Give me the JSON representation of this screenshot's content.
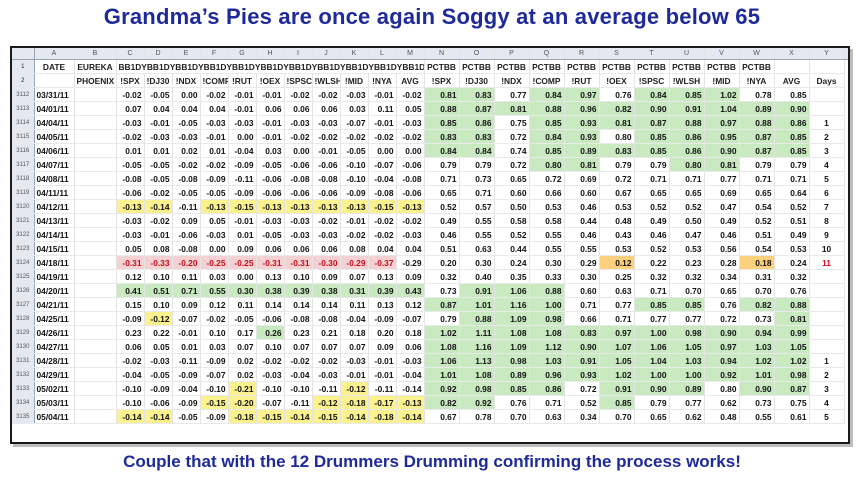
{
  "title": "Grandma’s Pies are once again Soggy at an average below 65",
  "footer": "Couple that with the 12 Drummers Drumming confirming the process works!",
  "column_letters": [
    "A",
    "B",
    "C",
    "D",
    "E",
    "F",
    "G",
    "H",
    "I",
    "J",
    "K",
    "L",
    "M",
    "N",
    "O",
    "P",
    "Q",
    "R",
    "S",
    "T",
    "U",
    "V",
    "W",
    "X",
    "Y",
    "Z"
  ],
  "header_row1": [
    "DATE",
    "EUREKA",
    "BB1DYBB1DYBB1DYBB1DYBB1DYBB1DYBB1DYBB1DYBB1DYBB1DYBB1DYCMPST",
    "",
    "",
    "",
    "",
    "",
    "",
    "",
    "",
    "",
    "",
    "",
    "PCTBB",
    "PCTBB",
    "PCTBB",
    "PCTBB",
    "PCTBB",
    "PCTBB",
    "PCTBB",
    "PCTBB",
    "PCTBB",
    "PCTBB",
    "",
    ""
  ],
  "header_row2": [
    "",
    "PHOENIX",
    "!SPX",
    "!DJ30",
    "!NDX",
    "!COMP",
    "!RUT",
    "!OEX",
    "!SPSC",
    "!WLSH",
    "!MID",
    "!NYA",
    "AVG",
    "!SPX",
    "!DJ30",
    "!NDX",
    "!COMP",
    "!RUT",
    "!OEX",
    "!SPSC",
    "!WLSH",
    "!MID",
    "!NYA",
    "AVG",
    "Days"
  ],
  "rows": [
    {
      "n": "3112",
      "d": "03/31/11",
      "v": [
        "-0.02",
        "-0.05",
        "0.00",
        "-0.02",
        "-0.01",
        "-0.01",
        "-0.02",
        "-0.02",
        "-0.03",
        "-0.01",
        "-0.02",
        "0.81",
        "0.83",
        "0.77",
        "0.84",
        "0.97",
        "0.76",
        "0.84",
        "0.85",
        "1.02",
        "0.78",
        "0.85"
      ],
      "days": "",
      "s": [
        "",
        "",
        "",
        "",
        "",
        "",
        "",
        "",
        "",
        "",
        "",
        "g",
        "g",
        "",
        "g",
        "g",
        "",
        "g",
        "g",
        "g",
        "",
        ""
      ]
    },
    {
      "n": "3113",
      "d": "04/01/11",
      "v": [
        "0.07",
        "0.04",
        "0.04",
        "0.04",
        "-0.01",
        "0.06",
        "0.06",
        "0.06",
        "0.03",
        "0.11",
        "0.05",
        "0.88",
        "0.87",
        "0.81",
        "0.88",
        "0.96",
        "0.82",
        "0.90",
        "0.91",
        "1.04",
        "0.89",
        "0.90"
      ],
      "days": "",
      "s": [
        "",
        "",
        "",
        "",
        "",
        "",
        "",
        "",
        "",
        "",
        "",
        "g",
        "g",
        "g",
        "g",
        "g",
        "g",
        "g",
        "g",
        "g",
        "g",
        "g"
      ]
    },
    {
      "n": "3114",
      "d": "04/04/11",
      "v": [
        "-0.03",
        "-0.01",
        "-0.05",
        "-0.03",
        "-0.03",
        "-0.01",
        "-0.03",
        "-0.03",
        "-0.07",
        "-0.01",
        "-0.03",
        "0.85",
        "0.86",
        "0.75",
        "0.85",
        "0.93",
        "0.81",
        "0.87",
        "0.88",
        "0.97",
        "0.88",
        "0.86"
      ],
      "days": "1",
      "s": [
        "",
        "",
        "",
        "",
        "",
        "",
        "",
        "",
        "",
        "",
        "",
        "g",
        "g",
        "",
        "g",
        "g",
        "g",
        "g",
        "g",
        "g",
        "g",
        "g"
      ]
    },
    {
      "n": "3115",
      "d": "04/05/11",
      "v": [
        "-0.02",
        "-0.03",
        "-0.03",
        "-0.01",
        "0.00",
        "-0.01",
        "-0.02",
        "-0.02",
        "-0.02",
        "-0.02",
        "-0.02",
        "0.83",
        "0.83",
        "0.72",
        "0.84",
        "0.93",
        "0.80",
        "0.85",
        "0.86",
        "0.95",
        "0.87",
        "0.85"
      ],
      "days": "2",
      "s": [
        "",
        "",
        "",
        "",
        "",
        "",
        "",
        "",
        "",
        "",
        "",
        "g",
        "g",
        "",
        "g",
        "g",
        "",
        "g",
        "g",
        "g",
        "g",
        "g"
      ]
    },
    {
      "n": "3116",
      "d": "04/06/11",
      "v": [
        "0.01",
        "0.01",
        "0.02",
        "0.01",
        "-0.04",
        "0.03",
        "0.00",
        "-0.01",
        "-0.05",
        "0.00",
        "0.00",
        "0.84",
        "0.84",
        "0.74",
        "0.85",
        "0.89",
        "0.83",
        "0.85",
        "0.86",
        "0.90",
        "0.87",
        "0.85"
      ],
      "days": "3",
      "s": [
        "",
        "",
        "",
        "",
        "",
        "",
        "",
        "",
        "",
        "",
        "",
        "g",
        "g",
        "",
        "g",
        "g",
        "g",
        "g",
        "g",
        "g",
        "g",
        "g"
      ]
    },
    {
      "n": "3117",
      "d": "04/07/11",
      "v": [
        "-0.05",
        "-0.05",
        "-0.02",
        "-0.02",
        "-0.09",
        "-0.05",
        "-0.06",
        "-0.06",
        "-0.10",
        "-0.07",
        "-0.06",
        "0.79",
        "0.79",
        "0.72",
        "0.80",
        "0.81",
        "0.79",
        "0.79",
        "0.80",
        "0.81",
        "0.79",
        "0.79"
      ],
      "days": "4",
      "s": [
        "",
        "",
        "",
        "",
        "",
        "",
        "",
        "",
        "",
        "",
        "",
        "",
        "",
        "",
        "g",
        "g",
        "",
        "",
        "g",
        "g",
        "",
        ""
      ]
    },
    {
      "n": "3118",
      "d": "04/08/11",
      "v": [
        "-0.08",
        "-0.05",
        "-0.08",
        "-0.09",
        "-0.11",
        "-0.06",
        "-0.08",
        "-0.08",
        "-0.10",
        "-0.04",
        "-0.08",
        "0.71",
        "0.73",
        "0.65",
        "0.72",
        "0.69",
        "0.72",
        "0.71",
        "0.71",
        "0.77",
        "0.71",
        "0.71"
      ],
      "days": "5",
      "s": [
        "",
        "",
        "",
        "",
        "",
        "",
        "",
        "",
        "",
        "",
        "",
        "",
        "",
        "",
        "",
        "",
        "",
        "",
        "",
        "",
        "",
        ""
      ]
    },
    {
      "n": "3119",
      "d": "04/11/11",
      "v": [
        "-0.06",
        "-0.02",
        "-0.05",
        "-0.05",
        "-0.09",
        "-0.06",
        "-0.06",
        "-0.06",
        "-0.09",
        "-0.08",
        "-0.06",
        "0.65",
        "0.71",
        "0.60",
        "0.66",
        "0.60",
        "0.67",
        "0.65",
        "0.65",
        "0.69",
        "0.65",
        "0.64"
      ],
      "days": "6",
      "s": [
        "",
        "",
        "",
        "",
        "",
        "",
        "",
        "",
        "",
        "",
        "",
        "",
        "",
        "",
        "",
        "",
        "",
        "",
        "",
        "",
        "",
        ""
      ]
    },
    {
      "n": "3120",
      "d": "04/12/11",
      "v": [
        "-0.13",
        "-0.14",
        "-0.11",
        "-0.13",
        "-0.15",
        "-0.13",
        "-0.13",
        "-0.13",
        "-0.13",
        "-0.15",
        "-0.13",
        "0.52",
        "0.57",
        "0.50",
        "0.53",
        "0.46",
        "0.53",
        "0.52",
        "0.52",
        "0.47",
        "0.54",
        "0.52"
      ],
      "days": "7",
      "s": [
        "y",
        "y",
        "",
        "y",
        "y",
        "y",
        "y",
        "y",
        "y",
        "y",
        "y",
        "",
        "",
        "",
        "",
        "",
        "",
        "",
        "",
        "",
        "",
        ""
      ]
    },
    {
      "n": "3121",
      "d": "04/13/11",
      "v": [
        "-0.03",
        "-0.02",
        "0.09",
        "0.05",
        "-0.01",
        "-0.03",
        "-0.03",
        "-0.02",
        "-0.01",
        "-0.02",
        "-0.02",
        "0.49",
        "0.55",
        "0.58",
        "0.58",
        "0.44",
        "0.48",
        "0.49",
        "0.50",
        "0.49",
        "0.52",
        "0.51"
      ],
      "days": "8",
      "s": [
        "",
        "",
        "",
        "",
        "",
        "",
        "",
        "",
        "",
        "",
        "",
        "",
        "",
        "",
        "",
        "",
        "",
        "",
        "",
        "",
        "",
        ""
      ]
    },
    {
      "n": "3122",
      "d": "04/14/11",
      "v": [
        "-0.03",
        "-0.01",
        "-0.06",
        "-0.03",
        "0.01",
        "-0.05",
        "-0.03",
        "-0.03",
        "-0.02",
        "-0.02",
        "-0.03",
        "0.46",
        "0.55",
        "0.52",
        "0.55",
        "0.46",
        "0.43",
        "0.46",
        "0.47",
        "0.46",
        "0.51",
        "0.49"
      ],
      "days": "9",
      "s": [
        "",
        "",
        "",
        "",
        "",
        "",
        "",
        "",
        "",
        "",
        "",
        "",
        "",
        "",
        "",
        "",
        "",
        "",
        "",
        "",
        "",
        ""
      ]
    },
    {
      "n": "3123",
      "d": "04/15/11",
      "v": [
        "0.05",
        "0.08",
        "-0.08",
        "0.00",
        "0.09",
        "0.06",
        "0.06",
        "0.06",
        "0.08",
        "0.04",
        "0.04",
        "0.51",
        "0.63",
        "0.44",
        "0.55",
        "0.55",
        "0.53",
        "0.52",
        "0.53",
        "0.56",
        "0.54",
        "0.53"
      ],
      "days": "10",
      "s": [
        "",
        "",
        "",
        "",
        "",
        "",
        "",
        "",
        "",
        "",
        "",
        "",
        "",
        "",
        "",
        "",
        "",
        "",
        "",
        "",
        "",
        ""
      ]
    },
    {
      "n": "3124",
      "d": "04/18/11",
      "v": [
        "-0.31",
        "-0.33",
        "-0.20",
        "-0.25",
        "-0.25",
        "-0.31",
        "-0.31",
        "-0.30",
        "-0.29",
        "-0.37",
        "-0.29",
        "0.20",
        "0.30",
        "0.24",
        "0.30",
        "0.29",
        "0.12",
        "0.22",
        "0.23",
        "0.28",
        "0.18",
        "0.24"
      ],
      "days": "11",
      "s": [
        "p",
        "p",
        "p",
        "p",
        "p",
        "p",
        "p",
        "p",
        "p",
        "p",
        "",
        "",
        "",
        "",
        "",
        "",
        "o",
        "",
        "",
        "",
        "o",
        ""
      ],
      "red": true
    },
    {
      "n": "3125",
      "d": "04/19/11",
      "v": [
        "0.12",
        "0.10",
        "0.11",
        "0.03",
        "0.00",
        "0.13",
        "0.10",
        "0.09",
        "0.07",
        "0.13",
        "0.09",
        "0.32",
        "0.40",
        "0.35",
        "0.33",
        "0.30",
        "0.25",
        "0.32",
        "0.32",
        "0.34",
        "0.31",
        "0.32"
      ],
      "days": "",
      "s": [
        "",
        "",
        "",
        "",
        "",
        "",
        "",
        "",
        "",
        "",
        "",
        "",
        "",
        "",
        "",
        "",
        "",
        "",
        "",
        "",
        "",
        ""
      ]
    },
    {
      "n": "3126",
      "d": "04/20/11",
      "v": [
        "0.41",
        "0.51",
        "0.71",
        "0.55",
        "0.30",
        "0.38",
        "0.39",
        "0.38",
        "0.31",
        "0.39",
        "0.43",
        "0.73",
        "0.91",
        "1.06",
        "0.88",
        "0.60",
        "0.63",
        "0.71",
        "0.70",
        "0.65",
        "0.70",
        "0.76"
      ],
      "days": "",
      "s": [
        "g",
        "g",
        "g",
        "g",
        "g",
        "g",
        "g",
        "g",
        "g",
        "g",
        "g",
        "",
        "g",
        "g",
        "g",
        "",
        "",
        "",
        "",
        "",
        "",
        ""
      ]
    },
    {
      "n": "3127",
      "d": "04/21/11",
      "v": [
        "0.15",
        "0.10",
        "0.09",
        "0.12",
        "0.11",
        "0.14",
        "0.14",
        "0.14",
        "0.11",
        "0.13",
        "0.12",
        "0.87",
        "1.01",
        "1.16",
        "1.00",
        "0.71",
        "0.77",
        "0.85",
        "0.85",
        "0.76",
        "0.82",
        "0.88"
      ],
      "days": "",
      "s": [
        "",
        "",
        "",
        "",
        "",
        "",
        "",
        "",
        "",
        "",
        "",
        "g",
        "g",
        "g",
        "g",
        "",
        "",
        "g",
        "g",
        "",
        "g",
        "g"
      ]
    },
    {
      "n": "3128",
      "d": "04/25/11",
      "v": [
        "-0.09",
        "-0.12",
        "-0.07",
        "-0.02",
        "-0.05",
        "-0.06",
        "-0.08",
        "-0.08",
        "-0.04",
        "-0.09",
        "-0.07",
        "0.79",
        "0.88",
        "1.09",
        "0.98",
        "0.66",
        "0.71",
        "0.77",
        "0.77",
        "0.72",
        "0.73",
        "0.81"
      ],
      "days": "",
      "s": [
        "",
        "y",
        "",
        "",
        "",
        "",
        "",
        "",
        "",
        "",
        "",
        "",
        "g",
        "g",
        "g",
        "",
        "",
        "",
        "",
        "",
        "",
        "g"
      ]
    },
    {
      "n": "3129",
      "d": "04/26/11",
      "v": [
        "0.23",
        "0.22",
        "-0.01",
        "0.10",
        "0.17",
        "0.26",
        "0.23",
        "0.21",
        "0.18",
        "0.20",
        "0.18",
        "1.02",
        "1.11",
        "1.08",
        "1.08",
        "0.83",
        "0.97",
        "1.00",
        "0.98",
        "0.90",
        "0.94",
        "0.99"
      ],
      "days": "",
      "s": [
        "",
        "",
        "",
        "",
        "",
        "g",
        "",
        "",
        "",
        "",
        "",
        "g",
        "g",
        "g",
        "g",
        "g",
        "g",
        "g",
        "g",
        "g",
        "g",
        "g"
      ]
    },
    {
      "n": "3130",
      "d": "04/27/11",
      "v": [
        "0.06",
        "0.05",
        "0.01",
        "0.03",
        "0.07",
        "0.10",
        "0.07",
        "0.07",
        "0.07",
        "0.09",
        "0.06",
        "1.08",
        "1.16",
        "1.09",
        "1.12",
        "0.90",
        "1.07",
        "1.06",
        "1.05",
        "0.97",
        "1.03",
        "1.05"
      ],
      "days": "",
      "s": [
        "",
        "",
        "",
        "",
        "",
        "",
        "",
        "",
        "",
        "",
        "",
        "g",
        "g",
        "g",
        "g",
        "g",
        "g",
        "g",
        "g",
        "g",
        "g",
        "g"
      ]
    },
    {
      "n": "3131",
      "d": "04/28/11",
      "v": [
        "-0.02",
        "-0.03",
        "-0.11",
        "-0.09",
        "0.02",
        "-0.02",
        "-0.02",
        "-0.02",
        "-0.03",
        "-0.01",
        "-0.03",
        "1.06",
        "1.13",
        "0.98",
        "1.03",
        "0.91",
        "1.05",
        "1.04",
        "1.03",
        "0.94",
        "1.02",
        "1.02"
      ],
      "days": "1",
      "s": [
        "",
        "",
        "",
        "",
        "",
        "",
        "",
        "",
        "",
        "",
        "",
        "g",
        "g",
        "g",
        "g",
        "g",
        "g",
        "g",
        "g",
        "g",
        "g",
        "g"
      ]
    },
    {
      "n": "3132",
      "d": "04/29/11",
      "v": [
        "-0.04",
        "-0.05",
        "-0.09",
        "-0.07",
        "0.02",
        "-0.03",
        "-0.04",
        "-0.03",
        "-0.01",
        "-0.01",
        "-0.04",
        "1.01",
        "1.08",
        "0.89",
        "0.96",
        "0.93",
        "1.02",
        "1.00",
        "1.00",
        "0.92",
        "1.01",
        "0.98"
      ],
      "days": "2",
      "s": [
        "",
        "",
        "",
        "",
        "",
        "",
        "",
        "",
        "",
        "",
        "",
        "g",
        "g",
        "g",
        "g",
        "g",
        "g",
        "g",
        "g",
        "g",
        "g",
        "g"
      ]
    },
    {
      "n": "3133",
      "d": "05/02/11",
      "v": [
        "-0.10",
        "-0.09",
        "-0.04",
        "-0.10",
        "-0.21",
        "-0.10",
        "-0.10",
        "-0.11",
        "-0.12",
        "-0.11",
        "-0.14",
        "0.92",
        "0.98",
        "0.85",
        "0.86",
        "0.72",
        "0.91",
        "0.90",
        "0.89",
        "0.80",
        "0.90",
        "0.87"
      ],
      "days": "3",
      "s": [
        "",
        "",
        "",
        "",
        "y",
        "",
        "",
        "",
        "y",
        "",
        "",
        "g",
        "g",
        "g",
        "g",
        "",
        "g",
        "g",
        "g",
        "",
        "g",
        "g"
      ]
    },
    {
      "n": "3134",
      "d": "05/03/11",
      "v": [
        "-0.10",
        "-0.06",
        "-0.09",
        "-0.15",
        "-0.20",
        "-0.07",
        "-0.11",
        "-0.12",
        "-0.18",
        "-0.17",
        "-0.13",
        "0.82",
        "0.92",
        "0.76",
        "0.71",
        "0.52",
        "0.85",
        "0.79",
        "0.77",
        "0.62",
        "0.73",
        "0.75"
      ],
      "days": "4",
      "s": [
        "",
        "",
        "",
        "y",
        "y",
        "",
        "",
        "y",
        "y",
        "y",
        "y",
        "g",
        "g",
        "",
        "",
        "",
        "g",
        "",
        "",
        "",
        "",
        ""
      ]
    },
    {
      "n": "3135",
      "d": "05/04/11",
      "v": [
        "-0.14",
        "-0.14",
        "-0.05",
        "-0.09",
        "-0.18",
        "-0.15",
        "-0.14",
        "-0.15",
        "-0.14",
        "-0.18",
        "-0.14",
        "0.67",
        "0.78",
        "0.70",
        "0.63",
        "0.34",
        "0.70",
        "0.65",
        "0.62",
        "0.48",
        "0.55",
        "0.61"
      ],
      "days": "5",
      "s": [
        "y",
        "y",
        "",
        "",
        "y",
        "y",
        "y",
        "y",
        "y",
        "y",
        "y",
        "",
        "",
        "",
        "",
        "",
        "",
        "",
        "",
        "",
        "",
        ""
      ]
    }
  ]
}
